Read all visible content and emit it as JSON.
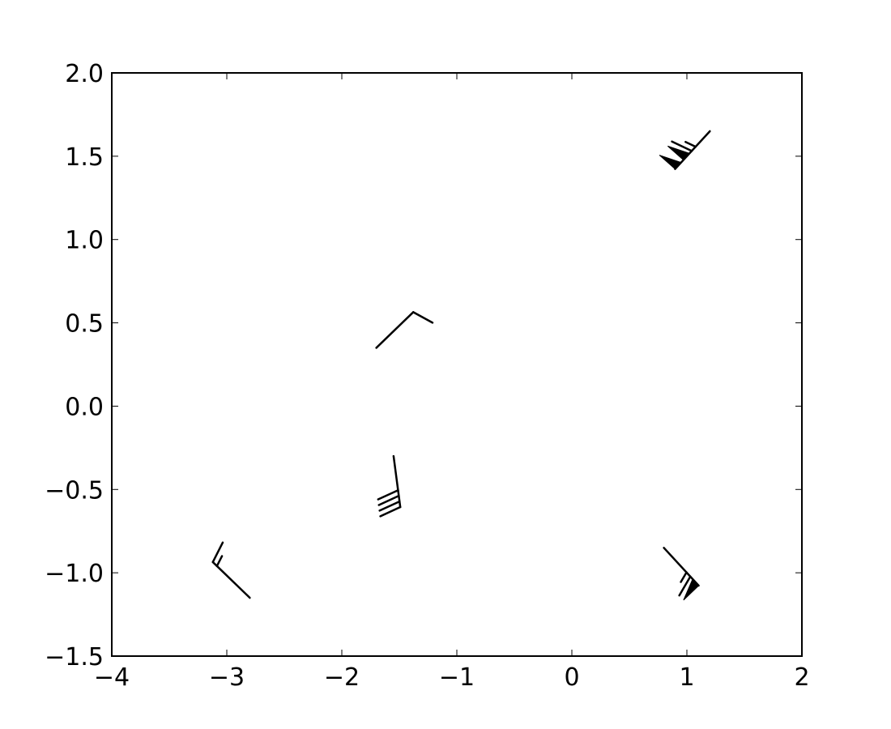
{
  "chart_data": {
    "type": "scatter",
    "marker": "wind-barbs",
    "title": "",
    "xlabel": "",
    "ylabel": "",
    "xlim": [
      -4,
      2
    ],
    "ylim": [
      -1.5,
      2.0
    ],
    "x_ticks": [
      -4,
      -3,
      -2,
      -1,
      0,
      1,
      2
    ],
    "x_tick_labels": [
      "−4",
      "−3",
      "−2",
      "−1",
      "0",
      "1",
      "2"
    ],
    "y_ticks": [
      -1.5,
      -1.0,
      -0.5,
      0.0,
      0.5,
      1.0,
      1.5,
      2.0
    ],
    "y_tick_labels": [
      "−1.5",
      "−1.0",
      "−0.5",
      "0.0",
      "0.5",
      "1.0",
      "1.5",
      "2.0"
    ],
    "grid": false,
    "barb_color": "#000000",
    "barbs": [
      {
        "x": -2.8,
        "y": -1.15,
        "u": -0.45,
        "v": 0.3,
        "full_barbs": 1,
        "half_barbs": 1,
        "flags": 0
      },
      {
        "x": -1.7,
        "y": 0.35,
        "u": 0.45,
        "v": 0.3,
        "full_barbs": 1,
        "half_barbs": 0,
        "flags": 0
      },
      {
        "x": -1.55,
        "y": -0.3,
        "u": 0.08,
        "v": -0.42,
        "full_barbs": 4,
        "half_barbs": 0,
        "flags": 0
      },
      {
        "x": 0.8,
        "y": -0.85,
        "u": 0.4,
        "v": -0.3,
        "full_barbs": 1,
        "half_barbs": 1,
        "flags": 1
      },
      {
        "x": 1.2,
        "y": 1.65,
        "u": -0.4,
        "v": -0.3,
        "full_barbs": 1,
        "half_barbs": 1,
        "flags": 2
      }
    ]
  }
}
